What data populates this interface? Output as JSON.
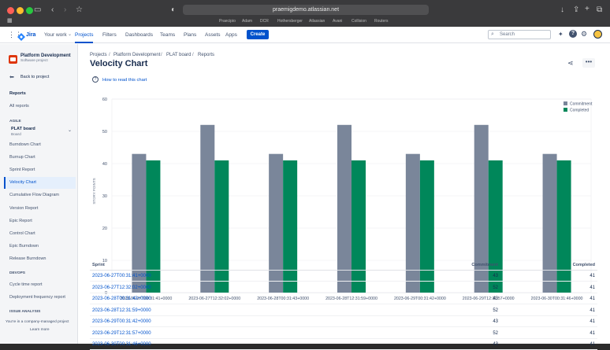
{
  "browser": {
    "url": "praemigdemo.atlassian.net",
    "bookmarks": [
      "Praecipio",
      "Adam",
      "DCR",
      "Hothersberger",
      "Atlassian",
      "Avani",
      "Collision",
      "Routers"
    ]
  },
  "nav": {
    "product": "Jira",
    "items": [
      "Your work",
      "Projects",
      "Filters",
      "Dashboards",
      "Teams",
      "Plans",
      "Assets",
      "Apps"
    ],
    "create": "Create",
    "search_placeholder": "Search"
  },
  "sidebar": {
    "project_name": "Platform Development",
    "project_type": "Software project",
    "back": "Back to project",
    "reports_heading": "Reports",
    "all_reports": "All reports",
    "agile_heading": "AGILE",
    "board_name": "PLAT board",
    "board_sub": "Board",
    "agile_items": [
      "Burndown Chart",
      "Burnup Chart",
      "Sprint Report",
      "Velocity Chart",
      "Cumulative Flow Diagram",
      "Version Report",
      "Epic Report",
      "Control Chart",
      "Epic Burndown",
      "Release Burndown"
    ],
    "devops_heading": "DEVOPS",
    "devops_items": [
      "Cycle time report",
      "Deployment frequency report"
    ],
    "issue_heading": "ISSUE ANALYSIS",
    "footer_text": "You're in a company-managed project",
    "learn_more": "Learn more"
  },
  "breadcrumb": [
    "Projects",
    "Platform Development",
    "PLAT board",
    "Reports"
  ],
  "page": {
    "title": "Velocity Chart",
    "how_to": "How to read this chart"
  },
  "colors": {
    "commitment": "#7a869a",
    "completed": "#00875a",
    "accent": "#0052cc"
  },
  "chart_data": {
    "type": "bar",
    "ylabel": "STORY POINTS",
    "ylim": [
      0,
      60
    ],
    "yticks": [
      0,
      10,
      20,
      30,
      40,
      50,
      60
    ],
    "categories": [
      "2023-06-27T00:31:41+0000",
      "2023-06-27T12:32:02+0000",
      "2023-06-28T00:31:43+0000",
      "2023-06-28T12:31:59+0000",
      "2023-06-29T00:31:42+0000",
      "2023-06-29T12:31:57+0000",
      "2023-06-30T00:31:46+0000"
    ],
    "series": [
      {
        "name": "Commitment",
        "values": [
          43,
          52,
          43,
          52,
          43,
          52,
          43
        ]
      },
      {
        "name": "Completed",
        "values": [
          41,
          41,
          41,
          41,
          41,
          41,
          41
        ]
      }
    ],
    "legend": "top-right"
  },
  "table": {
    "headers": [
      "Sprint",
      "Commitment",
      "Completed"
    ],
    "rows": [
      [
        "2023-06-27T00:31:41+0000",
        "43",
        "41"
      ],
      [
        "2023-06-27T12:32:02+0000",
        "52",
        "41"
      ],
      [
        "2023-06-28T00:31:43+0000",
        "43",
        "41"
      ],
      [
        "2023-06-28T12:31:59+0000",
        "52",
        "41"
      ],
      [
        "2023-06-29T00:31:42+0000",
        "43",
        "41"
      ],
      [
        "2023-06-29T12:31:57+0000",
        "52",
        "41"
      ],
      [
        "2023-06-30T00:31:46+0000",
        "43",
        "41"
      ]
    ]
  }
}
